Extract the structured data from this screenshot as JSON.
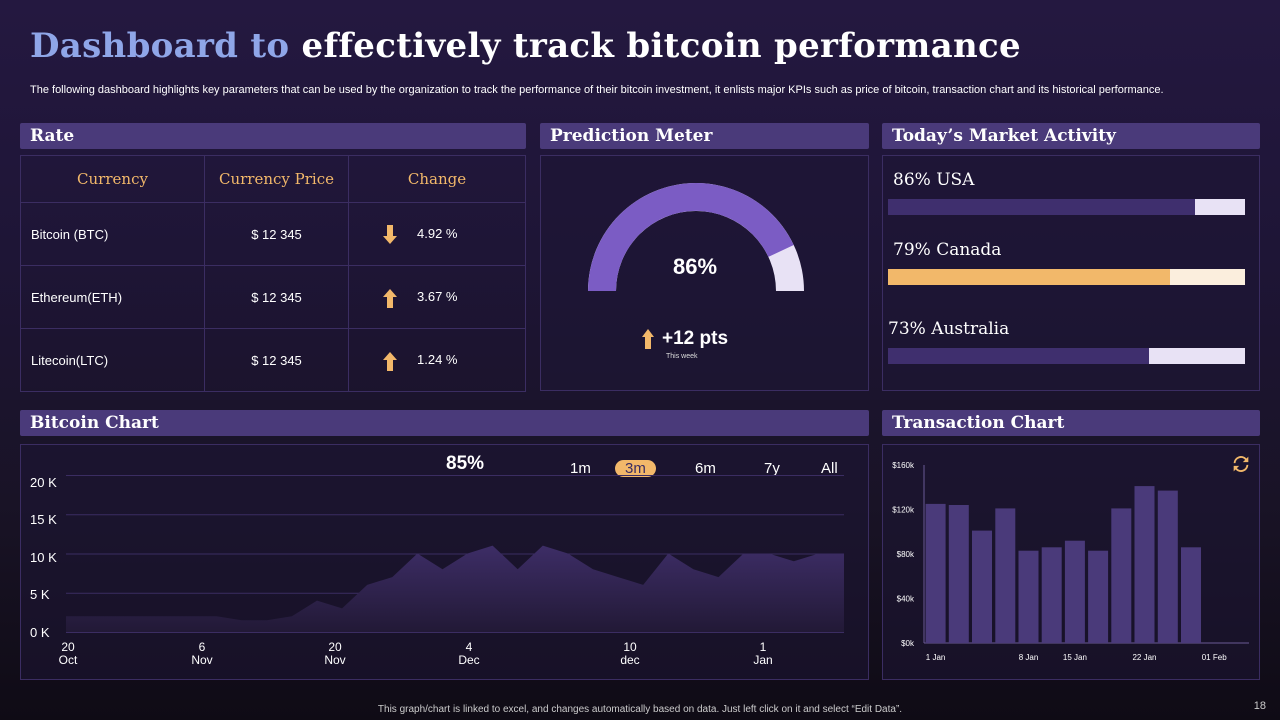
{
  "title_part1": "Dashboard to",
  "title_part2": "effectively track bitcoin performance",
  "subtitle": "The following dashboard highlights key parameters that can be used by the organization to track the performance of their bitcoin investment, it enlists major KPIs such as price of bitcoin, transaction chart and its historical performance.",
  "rate": {
    "header": "Rate",
    "columns": [
      "Currency",
      "Currency Price",
      "Change"
    ],
    "rows": [
      {
        "currency": "Bitcoin (BTC)",
        "price": "$ 12 345",
        "direction": "down",
        "change": "4.92 %"
      },
      {
        "currency": "Ethereum(ETH)",
        "price": "$ 12 345",
        "direction": "up",
        "change": "3.67 %"
      },
      {
        "currency": "Litecoin(LTC)",
        "price": "$ 12 345",
        "direction": "up",
        "change": "1.24 %"
      }
    ]
  },
  "prediction": {
    "header": "Prediction Meter",
    "value_label": "86%",
    "value": 86,
    "delta": "+12 pts",
    "period": "This week"
  },
  "market": {
    "header": "Today’s Market Activity",
    "items": [
      {
        "label": "86% USA",
        "value": 86,
        "color": "#3f2f6e",
        "track": "#e8e2f5"
      },
      {
        "label": "79% Canada",
        "value": 79,
        "color": "#f2b86a",
        "track": "#fbeedd"
      },
      {
        "label": "73% Australia",
        "value": 73,
        "color": "#3f2f6e",
        "track": "#e8e2f5"
      }
    ]
  },
  "bitcoin_chart": {
    "header": "Bitcoin Chart",
    "percent": "85%",
    "timeframes": [
      "1m",
      "3m",
      "6m",
      "7y",
      "All"
    ],
    "selected_timeframe": "3m"
  },
  "transaction_chart": {
    "header": "Transaction Chart"
  },
  "footer": "This graph/chart is linked to excel, and changes automatically based on data. Just left click on it and select “Edit Data”.",
  "page_number": "18",
  "colors": {
    "accent": "#f2b86a",
    "purple": "#4a3a7a",
    "bar": "#4a3a7a"
  },
  "chart_data": [
    {
      "type": "area",
      "title": "Bitcoin Chart",
      "ylim": [
        0,
        20000
      ],
      "y_ticks": [
        "0 K",
        "5 K",
        "10 K",
        "15 K",
        "20 K"
      ],
      "x_tick_labels": [
        [
          "20",
          "Oct"
        ],
        [
          "6",
          "Nov"
        ],
        [
          "20",
          "Nov"
        ],
        [
          "4",
          "Dec"
        ],
        [
          "10",
          "dec"
        ],
        [
          "1",
          "Jan"
        ]
      ],
      "x": [
        0,
        1,
        2,
        3,
        4,
        5,
        6,
        7,
        8,
        9,
        10,
        11,
        12,
        13,
        14,
        15,
        16,
        17,
        18,
        19,
        20,
        21,
        22,
        23,
        24,
        25,
        26,
        27,
        28,
        29,
        30,
        31
      ],
      "values": [
        2000,
        2000,
        2000,
        2000,
        2000,
        2000,
        2000,
        1500,
        1500,
        2000,
        4000,
        3000,
        6000,
        7000,
        10000,
        8000,
        10000,
        11000,
        8000,
        11000,
        10000,
        8000,
        7000,
        6000,
        10000,
        8000,
        7000,
        10000,
        10000,
        9000,
        10000,
        10000
      ]
    },
    {
      "type": "bar",
      "title": "Transaction Chart",
      "ylim": [
        0,
        160000
      ],
      "y_ticks": [
        "$0k",
        "$40k",
        "$80k",
        "$120k",
        "$160k"
      ],
      "categories": [
        "1 Jan",
        "",
        "",
        "",
        "8 Jan",
        "",
        "15 Jan",
        "",
        "",
        "22 Jan",
        "",
        "",
        "01 Feb",
        ""
      ],
      "values": [
        125000,
        124000,
        101000,
        121000,
        83000,
        86000,
        92000,
        83000,
        121000,
        141000,
        137000,
        86000,
        0,
        0
      ]
    }
  ]
}
